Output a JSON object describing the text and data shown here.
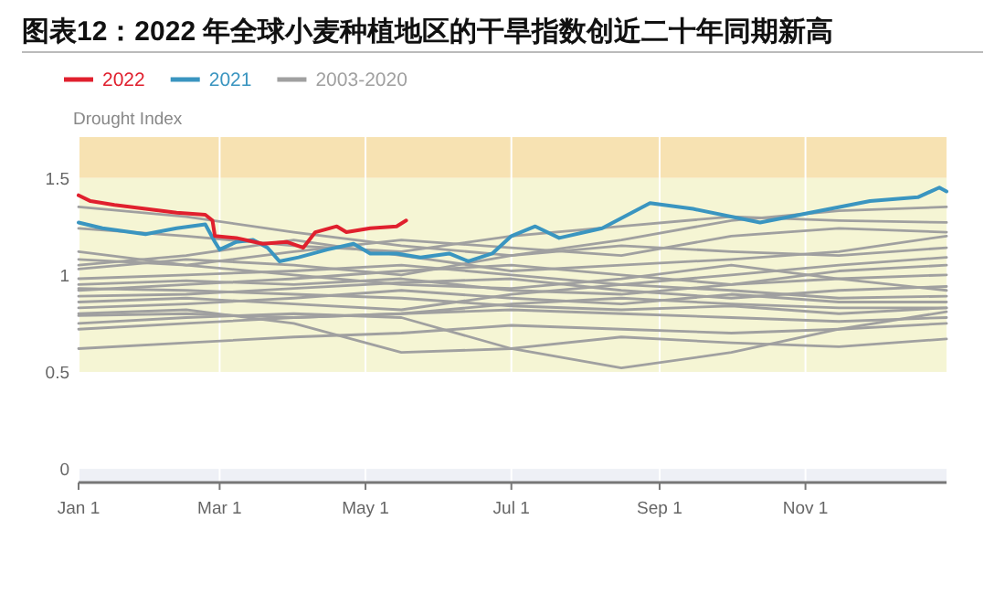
{
  "chart_data": {
    "type": "line",
    "title": "图表12：2022 年全球小麦种植地区的干旱指数创近二十年同期新高",
    "ylabel": "Drought Index",
    "x": [
      "--01-01",
      "--02-15",
      "--04-01",
      "--05-16",
      "--07-01",
      "--08-16",
      "--10-01",
      "--11-15",
      "--12-30"
    ],
    "xlim": [
      "--01-01",
      "--12-30"
    ],
    "xticks": [
      {
        "value": "--01-01",
        "label": "Jan 1"
      },
      {
        "value": "--03-01",
        "label": "Mar 1"
      },
      {
        "value": "--05-01",
        "label": "May 1"
      },
      {
        "value": "--07-01",
        "label": "Jul 1"
      },
      {
        "value": "--09-01",
        "label": "Sep 1"
      },
      {
        "value": "--11-01",
        "label": "Nov 1"
      }
    ],
    "ylim": [
      -0.07,
      1.71
    ],
    "yticks": [
      0,
      0.5,
      1,
      1.5
    ],
    "grid": "x",
    "legend": "top left",
    "line_style": "solid",
    "marker": "none",
    "bands": [
      {
        "axis": "y",
        "from": -0.07,
        "to": 0,
        "color": "#eef0f6"
      },
      {
        "axis": "y",
        "from": 0.5,
        "to": 1.5,
        "color": "#f5f5d4"
      },
      {
        "axis": "y",
        "from": 1.5,
        "to": 1.71,
        "color": "#f7e2b2"
      }
    ],
    "series": [
      {
        "name": "2003-2020",
        "color": "#a0a0a0",
        "values": [
          1.35,
          1.3,
          1.22,
          1.15,
          1.1,
          1.18,
          1.28,
          1.33,
          1.35
        ]
      },
      {
        "color": "#a0a0a0",
        "values": [
          1.24,
          1.2,
          1.15,
          1.12,
          1.2,
          1.25,
          1.3,
          1.28,
          1.27
        ]
      },
      {
        "color": "#a0a0a0",
        "values": [
          1.08,
          1.05,
          1.12,
          1.18,
          1.14,
          1.1,
          1.2,
          1.24,
          1.22
        ]
      },
      {
        "color": "#a0a0a0",
        "values": [
          1.03,
          1.08,
          1.05,
          1.0,
          1.1,
          1.15,
          1.12,
          1.1,
          1.14
        ]
      },
      {
        "color": "#a0a0a0",
        "values": [
          0.98,
          1.0,
          1.02,
          1.05,
          1.0,
          0.95,
          1.0,
          1.05,
          1.09
        ]
      },
      {
        "color": "#a0a0a0",
        "values": [
          0.95,
          0.97,
          0.95,
          0.98,
          0.92,
          0.9,
          0.95,
          1.02,
          1.05
        ]
      },
      {
        "color": "#a0a0a0",
        "values": [
          0.92,
          0.95,
          0.98,
          1.02,
          1.05,
          1.0,
          0.95,
          0.98,
          1.0
        ]
      },
      {
        "color": "#a0a0a0",
        "values": [
          0.89,
          0.9,
          0.93,
          0.96,
          0.98,
          0.92,
          0.88,
          0.92,
          0.94
        ]
      },
      {
        "color": "#a0a0a0",
        "values": [
          0.86,
          0.88,
          0.85,
          0.82,
          0.9,
          0.95,
          0.92,
          0.88,
          0.89
        ]
      },
      {
        "color": "#a0a0a0",
        "values": [
          0.83,
          0.85,
          0.88,
          0.92,
          0.88,
          0.85,
          0.9,
          0.86,
          0.86
        ]
      },
      {
        "color": "#a0a0a0",
        "values": [
          0.79,
          0.8,
          0.78,
          0.8,
          0.85,
          0.88,
          0.85,
          0.83,
          0.83
        ]
      },
      {
        "color": "#a0a0a0",
        "values": [
          0.75,
          0.78,
          0.8,
          0.78,
          0.62,
          0.52,
          0.6,
          0.72,
          0.81
        ]
      },
      {
        "color": "#a0a0a0",
        "values": [
          0.72,
          0.75,
          0.78,
          0.8,
          0.82,
          0.8,
          0.78,
          0.76,
          0.78
        ]
      },
      {
        "color": "#a0a0a0",
        "values": [
          0.62,
          0.65,
          0.68,
          0.7,
          0.74,
          0.72,
          0.7,
          0.72,
          0.75
        ]
      },
      {
        "color": "#a0a0a0",
        "values": [
          0.8,
          0.82,
          0.75,
          0.6,
          0.62,
          0.68,
          0.65,
          0.63,
          0.67
        ]
      },
      {
        "color": "#a0a0a0",
        "values": [
          1.12,
          1.05,
          1.0,
          0.95,
          0.93,
          0.98,
          1.05,
          0.98,
          0.92
        ]
      },
      {
        "color": "#a0a0a0",
        "values": [
          0.93,
          0.92,
          0.9,
          0.88,
          0.84,
          0.82,
          0.84,
          0.8,
          0.83
        ]
      },
      {
        "color": "#a0a0a0",
        "values": [
          1.05,
          1.1,
          1.18,
          1.1,
          1.02,
          1.05,
          1.08,
          1.12,
          1.2
        ]
      },
      {
        "name": "2021",
        "color": "#3a95c0",
        "x": [
          "--01-01",
          "--01-11",
          "--01-29",
          "--02-11",
          "--02-23",
          "--02-27",
          "--03-01",
          "--03-08",
          "--03-15",
          "--03-21",
          "--03-26",
          "--04-03",
          "--04-15",
          "--04-26",
          "--05-03",
          "--05-14",
          "--05-24",
          "--06-05",
          "--06-13",
          "--06-23",
          "--07-01",
          "--07-11",
          "--07-21",
          "--08-08",
          "--08-28",
          "--09-15",
          "--10-13",
          "--11-03",
          "--11-28",
          "--12-18",
          "--12-27",
          "--12-30"
        ],
        "values": [
          1.27,
          1.24,
          1.21,
          1.24,
          1.26,
          1.17,
          1.13,
          1.17,
          1.18,
          1.14,
          1.07,
          1.09,
          1.13,
          1.16,
          1.11,
          1.11,
          1.09,
          1.11,
          1.07,
          1.11,
          1.2,
          1.25,
          1.19,
          1.24,
          1.37,
          1.34,
          1.27,
          1.32,
          1.38,
          1.4,
          1.45,
          1.43
        ]
      },
      {
        "name": "2022",
        "color": "#e0202e",
        "x": [
          "--01-01",
          "--01-06",
          "--01-16",
          "--01-29",
          "--02-11",
          "--02-23",
          "--02-26",
          "--02-27",
          "--03-08",
          "--03-19",
          "--03-29",
          "--04-05",
          "--04-10",
          "--04-19",
          "--04-23",
          "--05-03",
          "--05-14",
          "--05-18"
        ],
        "values": [
          1.41,
          1.38,
          1.36,
          1.34,
          1.32,
          1.31,
          1.28,
          1.2,
          1.19,
          1.16,
          1.17,
          1.14,
          1.22,
          1.25,
          1.22,
          1.24,
          1.25,
          1.28
        ]
      }
    ]
  }
}
